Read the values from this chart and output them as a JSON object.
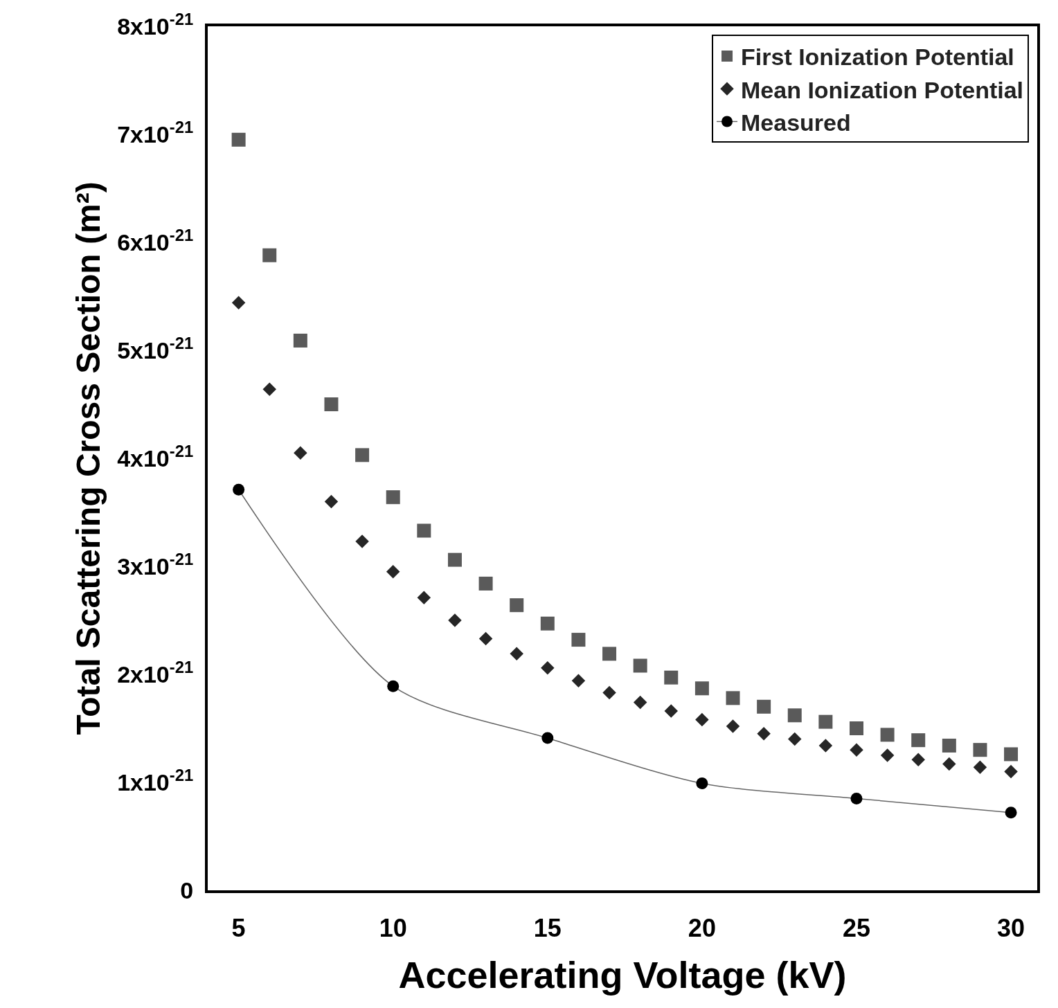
{
  "chart_data": {
    "type": "scatter",
    "xlabel": "Accelerating Voltage (kV)",
    "ylabel": "Total Scattering Cross Section (m²)",
    "xlim": [
      4,
      30.85
    ],
    "ylim": [
      0,
      8e-21
    ],
    "xticks": [
      5,
      10,
      15,
      20,
      25,
      30
    ],
    "yticks": [
      0,
      {
        "value": 1e-21,
        "label": "1x10$^{-21}$"
      },
      {
        "value": 2e-21,
        "label": "2x10$^{-21}$"
      },
      {
        "value": 3e-21,
        "label": "3x10$^{-21}$"
      },
      {
        "value": 4e-21,
        "label": "4x10$^{-21}$"
      },
      {
        "value": 5e-21,
        "label": "5x10$^{-21}$"
      },
      {
        "value": 6e-21,
        "label": "6x10$^{-21}$"
      },
      {
        "value": 7e-21,
        "label": "7x10$^{-21}$"
      },
      {
        "value": 8e-21,
        "label": "8x10$^{-21}$"
      }
    ],
    "x": [
      5,
      6,
      7,
      8,
      9,
      10,
      11,
      12,
      13,
      14,
      15,
      16,
      17,
      18,
      19,
      20,
      21,
      22,
      23,
      24,
      25,
      26,
      27,
      28,
      29,
      30
    ],
    "legend": "top right",
    "series": [
      {
        "name": "First Ionization Potential",
        "marker": "square",
        "color": "#5a5a5a",
        "values": [
          6.95e-21,
          5.88e-21,
          5.09e-21,
          4.5e-21,
          4.03e-21,
          3.64e-21,
          3.33e-21,
          3.06e-21,
          2.84e-21,
          2.64e-21,
          2.47e-21,
          2.32e-21,
          2.19e-21,
          2.08e-21,
          1.97e-21,
          1.87e-21,
          1.78e-21,
          1.7e-21,
          1.62e-21,
          1.56e-21,
          1.5e-21,
          1.44e-21,
          1.39e-21,
          1.34e-21,
          1.3e-21,
          1.26e-21
        ]
      },
      {
        "name": "Mean Ionization Potential",
        "marker": "diamond",
        "color": "#262626",
        "values": [
          5.44e-21,
          4.64e-21,
          4.05e-21,
          3.6e-21,
          3.23e-21,
          2.95e-21,
          2.71e-21,
          2.5e-21,
          2.33e-21,
          2.19e-21,
          2.06e-21,
          1.94e-21,
          1.83e-21,
          1.74e-21,
          1.66e-21,
          1.58e-21,
          1.52e-21,
          1.45e-21,
          1.4e-21,
          1.34e-21,
          1.3e-21,
          1.25e-21,
          1.21e-21,
          1.17e-21,
          1.14e-21,
          1.1e-21
        ]
      },
      {
        "name": "Measured",
        "type": "line",
        "marker": "circle",
        "line_style": "solid",
        "color": "#000000",
        "x": [
          5,
          10,
          15,
          20,
          25,
          30
        ],
        "values": [
          3.71e-21,
          1.89e-21,
          1.41e-21,
          9.9e-22,
          8.5e-22,
          7.2e-22
        ]
      }
    ]
  }
}
